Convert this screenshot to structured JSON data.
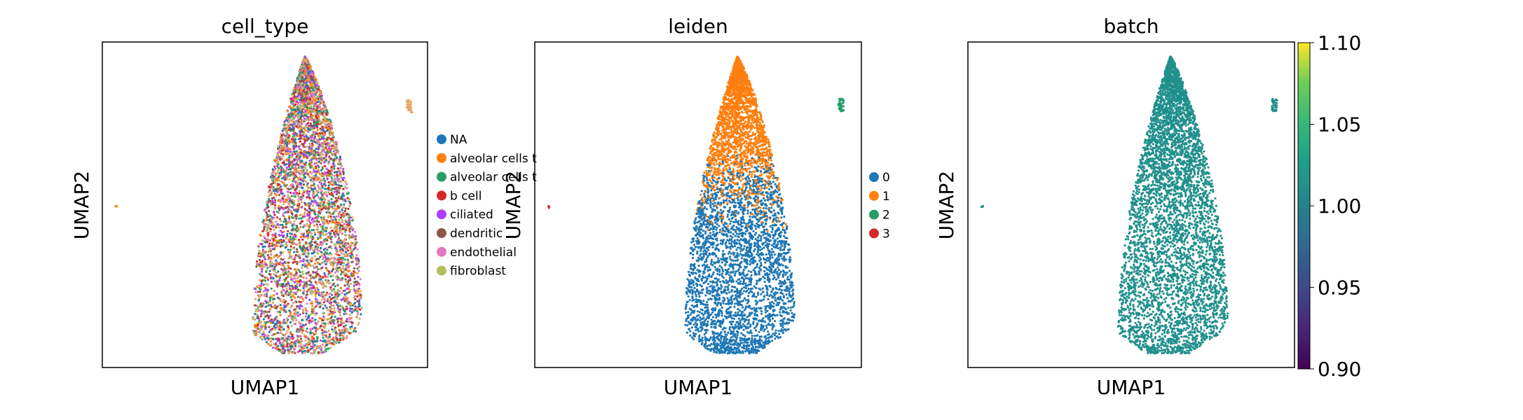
{
  "chart_data": [
    {
      "type": "scatter",
      "title": "cell_type",
      "xlabel": "UMAP1",
      "ylabel": "UMAP2",
      "grid": false,
      "legend_placement": "right",
      "series": [
        {
          "name": "NA",
          "color": "#1f77b4"
        },
        {
          "name": "alveolar cells t",
          "color": "#ff7f0e"
        },
        {
          "name": "alveolar cells t",
          "color": "#279e68"
        },
        {
          "name": "b cell",
          "color": "#d62728"
        },
        {
          "name": "ciliated",
          "color": "#aa40fc"
        },
        {
          "name": "dendritic",
          "color": "#8c564b"
        },
        {
          "name": "endothelial",
          "color": "#e377c2"
        },
        {
          "name": "fibroblast",
          "color": "#b5bd61"
        }
      ],
      "point_colors": [
        "#1f77b4",
        "#ff7f0e",
        "#279e68",
        "#d62728",
        "#aa40fc",
        "#8c564b",
        "#e377c2",
        "#b5bd61",
        "#e8a86b",
        "#c9a27e"
      ]
    },
    {
      "type": "scatter",
      "title": "leiden",
      "xlabel": "UMAP1",
      "ylabel": "UMAP2",
      "grid": false,
      "legend_placement": "right",
      "series": [
        {
          "name": "0",
          "color": "#1f77b4"
        },
        {
          "name": "1",
          "color": "#ff7f0e"
        },
        {
          "name": "2",
          "color": "#279e68"
        },
        {
          "name": "3",
          "color": "#d62728"
        }
      ]
    },
    {
      "type": "scatter",
      "title": "batch",
      "xlabel": "UMAP1",
      "ylabel": "UMAP2",
      "grid": false,
      "point_color": "#21908d",
      "colorbar": {
        "colormap": "viridis",
        "range": [
          0.9,
          1.1
        ],
        "ticks": [
          "1.10",
          "1.05",
          "1.00",
          "0.95",
          "0.90"
        ]
      }
    }
  ]
}
